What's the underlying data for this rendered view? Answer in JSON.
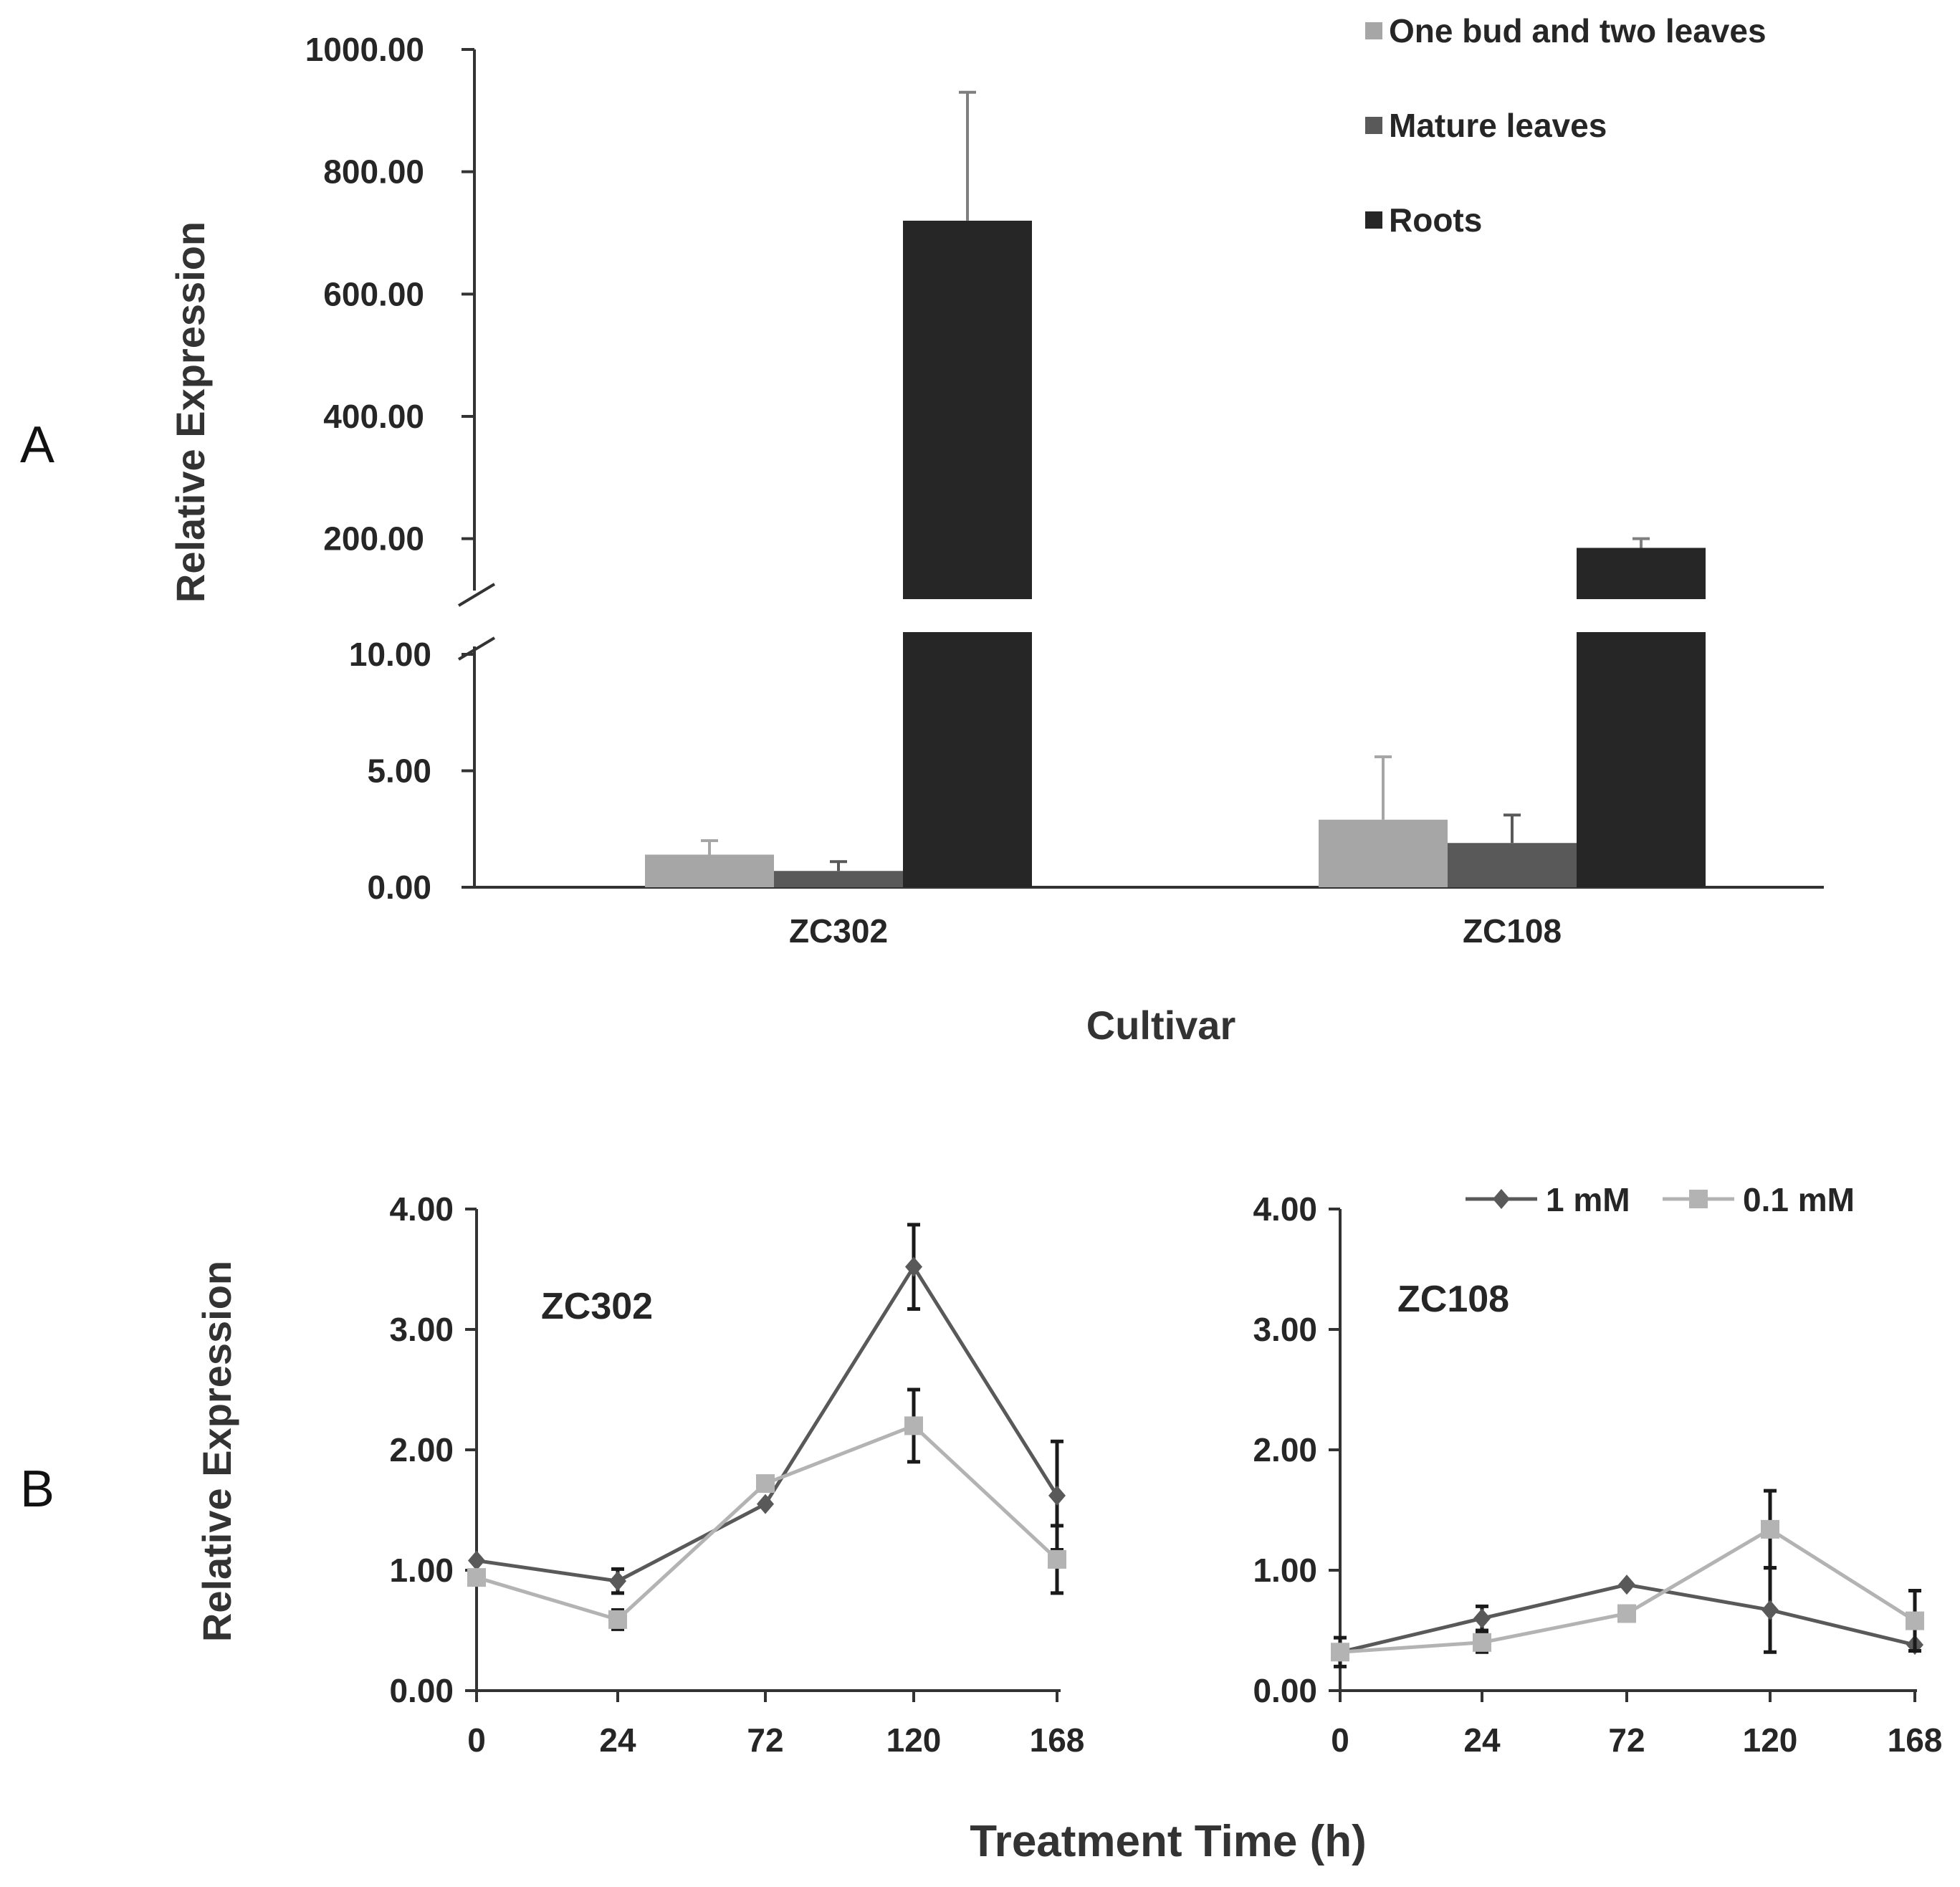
{
  "panel_labels": {
    "a": "A",
    "b": "B"
  },
  "chart_data": [
    {
      "type": "bar",
      "title": "",
      "xlabel": "Cultivar",
      "ylabel": "Relative Expression",
      "categories": [
        "ZC302",
        "ZC108"
      ],
      "y_axis_break": true,
      "lower_segment": {
        "ylim": [
          0,
          10
        ],
        "ticks": [
          "0.00",
          "5.00",
          "10.00"
        ]
      },
      "upper_segment": {
        "ylim": [
          100,
          1000
        ],
        "ticks": [
          "200.00",
          "400.00",
          "600.00",
          "800.00",
          "1000.00"
        ]
      },
      "legend_position": "top-right",
      "series": [
        {
          "name": "One bud and two leaves",
          "color": "#a6a6a6",
          "values": [
            1.4,
            2.9
          ],
          "errors": [
            0.6,
            2.7
          ]
        },
        {
          "name": "Mature leaves",
          "color": "#595959",
          "values": [
            0.7,
            1.9
          ],
          "errors": [
            0.4,
            1.2
          ]
        },
        {
          "name": "Roots",
          "color": "#262626",
          "values": [
            720,
            185
          ],
          "errors": [
            210,
            15
          ]
        }
      ]
    },
    {
      "type": "line",
      "label": "ZC302",
      "x": [
        "0",
        "24",
        "72",
        "120",
        "168"
      ],
      "ylim": [
        0,
        4
      ],
      "y_ticks": [
        "0.00",
        "1.00",
        "2.00",
        "3.00",
        "4.00"
      ],
      "series": [
        {
          "name": "1 mM",
          "color": "#595959",
          "marker": "diamond",
          "values": [
            1.08,
            0.91,
            1.55,
            3.52,
            1.62
          ],
          "errors": [
            0.0,
            0.1,
            0.0,
            0.35,
            0.45
          ]
        },
        {
          "name": "0.1 mM",
          "color": "#b3b3b3",
          "marker": "square",
          "values": [
            0.94,
            0.59,
            1.72,
            2.2,
            1.09
          ],
          "errors": [
            0.0,
            0.08,
            0.0,
            0.3,
            0.28
          ]
        }
      ]
    },
    {
      "type": "line",
      "label": "ZC108",
      "x": [
        "0",
        "24",
        "72",
        "120",
        "168"
      ],
      "ylim": [
        0,
        4
      ],
      "y_ticks": [
        "0.00",
        "1.00",
        "2.00",
        "3.00",
        "4.00"
      ],
      "legend_position": "top-right",
      "series": [
        {
          "name": "1 mM",
          "color": "#595959",
          "marker": "diamond",
          "values": [
            0.32,
            0.6,
            0.88,
            0.67,
            0.38
          ],
          "errors": [
            0.12,
            0.1,
            0.0,
            0.35,
            0.0
          ]
        },
        {
          "name": "0.1 mM",
          "color": "#b3b3b3",
          "marker": "square",
          "values": [
            0.32,
            0.4,
            0.64,
            1.34,
            0.58
          ],
          "errors": [
            0.0,
            0.08,
            0.0,
            0.32,
            0.25
          ]
        }
      ]
    }
  ],
  "shared_xlabel": "Treatment Time (h)",
  "shared_ylabel": "Relative Expression"
}
